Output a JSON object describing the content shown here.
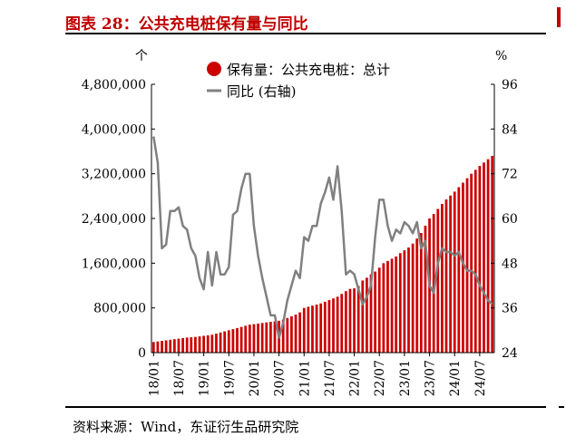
{
  "header": {
    "title": "图表 28：公共充电桩保有量与同比"
  },
  "footer": {
    "source": "资料来源：Wind，东证衍生品研究院"
  },
  "colors": {
    "title": "#c00000",
    "bar": "#cc0000",
    "line": "#808080"
  },
  "chart_data": {
    "type": "bar",
    "left_unit": "个",
    "right_unit": "%",
    "ylim": [
      0,
      4800000
    ],
    "ylim_right": [
      24,
      96
    ],
    "yticks_left": [
      {
        "value": 0,
        "label": "0"
      },
      {
        "value": 800000,
        "label": "800,000"
      },
      {
        "value": 1600000,
        "label": "1,600,000"
      },
      {
        "value": 2400000,
        "label": "2,400,000"
      },
      {
        "value": 3200000,
        "label": "3,200,000"
      },
      {
        "value": 4000000,
        "label": "4,000,000"
      },
      {
        "value": 4800000,
        "label": "4,800,000"
      }
    ],
    "yticks_right": [
      {
        "value": 24,
        "label": "24"
      },
      {
        "value": 36,
        "label": "36"
      },
      {
        "value": 48,
        "label": "48"
      },
      {
        "value": 60,
        "label": "60"
      },
      {
        "value": 72,
        "label": "72"
      },
      {
        "value": 84,
        "label": "84"
      },
      {
        "value": 96,
        "label": "96"
      }
    ],
    "xticks": [
      {
        "index": 0,
        "label": "18/01"
      },
      {
        "index": 6,
        "label": "18/07"
      },
      {
        "index": 12,
        "label": "19/01"
      },
      {
        "index": 18,
        "label": "19/07"
      },
      {
        "index": 24,
        "label": "20/01"
      },
      {
        "index": 30,
        "label": "20/07"
      },
      {
        "index": 36,
        "label": "21/01"
      },
      {
        "index": 42,
        "label": "21/07"
      },
      {
        "index": 48,
        "label": "22/01"
      },
      {
        "index": 54,
        "label": "22/07"
      },
      {
        "index": 60,
        "label": "23/01"
      },
      {
        "index": 66,
        "label": "23/07"
      },
      {
        "index": 72,
        "label": "24/01"
      },
      {
        "index": 78,
        "label": "24/07"
      }
    ],
    "grid": false,
    "legend_placement": "top",
    "series": [
      {
        "name": "保有量：公共充电桩：总计",
        "axis": "left",
        "kind": "bar",
        "values": [
          190000,
          200000,
          210000,
          220000,
          230000,
          240000,
          250000,
          260000,
          270000,
          275000,
          280000,
          290000,
          300000,
          310000,
          320000,
          340000,
          360000,
          380000,
          400000,
          420000,
          440000,
          460000,
          480000,
          500000,
          510000,
          520000,
          530000,
          540000,
          550000,
          560000,
          570000,
          590000,
          620000,
          650000,
          680000,
          720000,
          800000,
          820000,
          840000,
          860000,
          880000,
          910000,
          940000,
          970000,
          1000000,
          1050000,
          1100000,
          1140000,
          1150000,
          1190000,
          1290000,
          1340000,
          1400000,
          1450000,
          1520000,
          1600000,
          1640000,
          1680000,
          1720000,
          1780000,
          1830000,
          1880000,
          1950000,
          2040000,
          2140000,
          2270000,
          2400000,
          2480000,
          2570000,
          2660000,
          2740000,
          2810000,
          2880000,
          2960000,
          3040000,
          3120000,
          3200000,
          3270000,
          3340000,
          3400000,
          3460000,
          3520000
        ]
      },
      {
        "name": "同比 (右轴)",
        "axis": "right",
        "kind": "line",
        "values": [
          82,
          75,
          52,
          53,
          62,
          62,
          63,
          58,
          57,
          52,
          50,
          44,
          41,
          51,
          42,
          51,
          45,
          45,
          47,
          61,
          62,
          68,
          72,
          72,
          58,
          50,
          44,
          39,
          34,
          34,
          28,
          32,
          38,
          42,
          46,
          44,
          55,
          54,
          58,
          58,
          64,
          67,
          71,
          65,
          74,
          62,
          45,
          46,
          45,
          41,
          37,
          39,
          42,
          55,
          65,
          65,
          58,
          54,
          57,
          56,
          59,
          58,
          56,
          59,
          52,
          54,
          42,
          40,
          48,
          52,
          51,
          51,
          50,
          51,
          48,
          46,
          46,
          45,
          42,
          40,
          38,
          37
        ]
      }
    ]
  }
}
